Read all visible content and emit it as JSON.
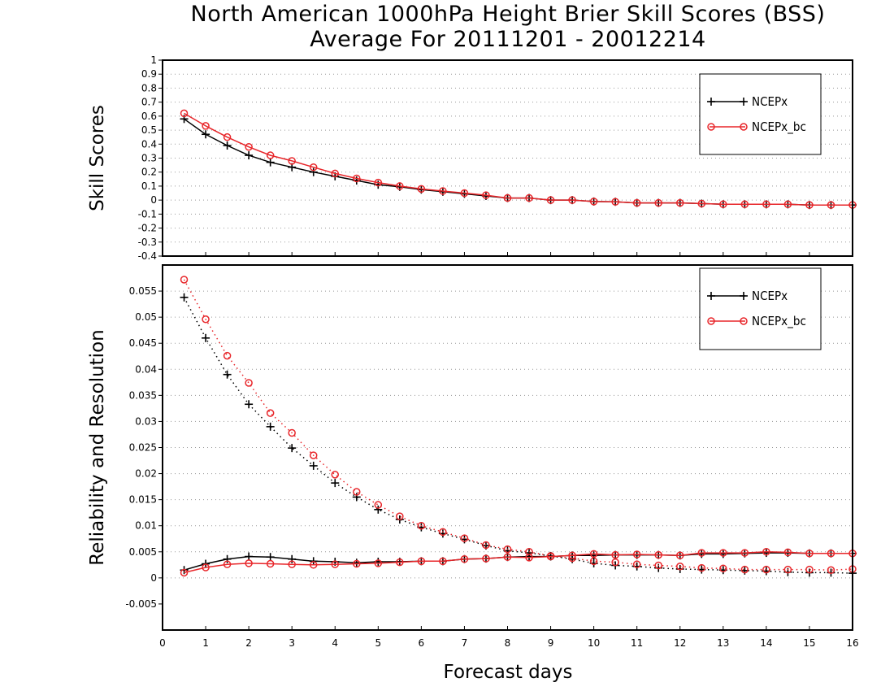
{
  "title_line1": "North American 1000hPa Height Brier Skill Scores (BSS)",
  "title_line2": "Average For 20111201 - 20012214",
  "xlabel": "Forecast days",
  "colors": {
    "NCEPx": "#000000",
    "NCEPx_bc": "#e8262a",
    "grid": "#999999"
  },
  "chart_data": [
    {
      "type": "line",
      "panel": "top",
      "ylabel": "Skill Scores",
      "xlim": [
        0,
        16
      ],
      "ylim": [
        -0.4,
        1
      ],
      "xticks": [
        0,
        1,
        2,
        3,
        4,
        5,
        6,
        7,
        8,
        9,
        10,
        11,
        12,
        13,
        14,
        15,
        16
      ],
      "yticks": [
        -0.4,
        -0.3,
        -0.2,
        -0.1,
        0,
        0.1,
        0.2,
        0.3,
        0.4,
        0.5,
        0.6,
        0.7,
        0.8,
        0.9,
        1
      ],
      "ytick_labels": [
        "-0.4",
        "-0.3",
        "-0.2",
        "-0.1",
        "0",
        "0.1",
        "0.2",
        "0.3",
        "0.4",
        "0.5",
        "0.6",
        "0.7",
        "0.8",
        "0.9",
        "1"
      ],
      "grid": true,
      "legend_position": "top-right",
      "x": [
        0.5,
        1,
        1.5,
        2,
        2.5,
        3,
        3.5,
        4,
        4.5,
        5,
        5.5,
        6,
        6.5,
        7,
        7.5,
        8,
        8.5,
        9,
        9.5,
        10,
        10.5,
        11,
        11.5,
        12,
        12.5,
        13,
        13.5,
        14,
        14.5,
        15,
        15.5,
        16
      ],
      "series": [
        {
          "name": "NCEPx",
          "marker": "plus",
          "style": "solid",
          "values": [
            0.58,
            0.47,
            0.39,
            0.32,
            0.27,
            0.235,
            0.2,
            0.17,
            0.14,
            0.11,
            0.095,
            0.075,
            0.06,
            0.045,
            0.03,
            0.015,
            0.015,
            0.0,
            0.0,
            -0.01,
            -0.012,
            -0.02,
            -0.02,
            -0.02,
            -0.025,
            -0.03,
            -0.03,
            -0.03,
            -0.03,
            -0.035,
            -0.035,
            -0.035
          ]
        },
        {
          "name": "NCEPx_bc",
          "marker": "circle",
          "style": "solid",
          "values": [
            0.62,
            0.53,
            0.45,
            0.38,
            0.32,
            0.28,
            0.235,
            0.19,
            0.155,
            0.125,
            0.1,
            0.08,
            0.065,
            0.05,
            0.035,
            0.015,
            0.015,
            0.0,
            0.0,
            -0.01,
            -0.012,
            -0.02,
            -0.02,
            -0.02,
            -0.025,
            -0.03,
            -0.03,
            -0.03,
            -0.03,
            -0.035,
            -0.035,
            -0.035
          ]
        }
      ]
    },
    {
      "type": "line",
      "panel": "bottom",
      "ylabel": "Reliability and Resolution",
      "xlim": [
        0,
        16
      ],
      "ylim": [
        -0.01,
        0.06
      ],
      "xticks": [
        0,
        1,
        2,
        3,
        4,
        5,
        6,
        7,
        8,
        9,
        10,
        11,
        12,
        13,
        14,
        15,
        16
      ],
      "yticks": [
        -0.005,
        0,
        0.005,
        0.01,
        0.015,
        0.02,
        0.025,
        0.03,
        0.035,
        0.04,
        0.045,
        0.05,
        0.055
      ],
      "ytick_labels": [
        "-0.005",
        "0",
        "0.005",
        "0.01",
        "0.015",
        "0.02",
        "0.025",
        "0.03",
        "0.035",
        "0.04",
        "0.045",
        "0.05",
        "0.055"
      ],
      "grid": true,
      "legend_position": "top-right",
      "x": [
        0.5,
        1,
        1.5,
        2,
        2.5,
        3,
        3.5,
        4,
        4.5,
        5,
        5.5,
        6,
        6.5,
        7,
        7.5,
        8,
        8.5,
        9,
        9.5,
        10,
        10.5,
        11,
        11.5,
        12,
        12.5,
        13,
        13.5,
        14,
        14.5,
        15,
        15.5,
        16
      ],
      "series": [
        {
          "name": "NCEPx",
          "marker": "plus",
          "style": "dotted",
          "legend": false,
          "values": [
            0.0538,
            0.046,
            0.039,
            0.0333,
            0.029,
            0.0249,
            0.0215,
            0.0182,
            0.0155,
            0.0131,
            0.0112,
            0.0097,
            0.0085,
            0.0074,
            0.0062,
            0.0052,
            0.0048,
            0.0042,
            0.0036,
            0.0028,
            0.0024,
            0.0022,
            0.0019,
            0.0017,
            0.0016,
            0.0015,
            0.0014,
            0.0013,
            0.0011,
            0.001,
            0.001,
            0.0009
          ]
        },
        {
          "name": "NCEPx_bc",
          "marker": "circle",
          "style": "dotted",
          "legend": false,
          "values": [
            0.0572,
            0.0496,
            0.0426,
            0.0374,
            0.0316,
            0.0278,
            0.0235,
            0.0198,
            0.0165,
            0.014,
            0.0118,
            0.01,
            0.0088,
            0.0076,
            0.0063,
            0.0055,
            0.005,
            0.0042,
            0.0038,
            0.0032,
            0.003,
            0.0026,
            0.0024,
            0.0022,
            0.0019,
            0.0018,
            0.0016,
            0.0016,
            0.0016,
            0.0016,
            0.0015,
            0.0017
          ]
        },
        {
          "name": "NCEPx",
          "marker": "plus",
          "style": "solid",
          "values": [
            0.0015,
            0.0027,
            0.0036,
            0.0041,
            0.004,
            0.0036,
            0.0032,
            0.0031,
            0.0029,
            0.0031,
            0.0031,
            0.0032,
            0.0032,
            0.0036,
            0.0037,
            0.004,
            0.0041,
            0.0041,
            0.0043,
            0.0043,
            0.0044,
            0.0044,
            0.0044,
            0.0043,
            0.0046,
            0.0046,
            0.0047,
            0.0048,
            0.0048,
            0.0047,
            0.0047,
            0.0047
          ]
        },
        {
          "name": "NCEPx_bc",
          "marker": "circle",
          "style": "solid",
          "values": [
            0.001,
            0.002,
            0.0026,
            0.0028,
            0.0027,
            0.0026,
            0.0025,
            0.0026,
            0.0027,
            0.0028,
            0.003,
            0.0032,
            0.0032,
            0.0036,
            0.0037,
            0.004,
            0.0039,
            0.0041,
            0.0043,
            0.0046,
            0.0044,
            0.0045,
            0.0044,
            0.0043,
            0.0048,
            0.0048,
            0.0048,
            0.005,
            0.0049,
            0.0047,
            0.0047,
            0.0047
          ]
        }
      ]
    }
  ]
}
